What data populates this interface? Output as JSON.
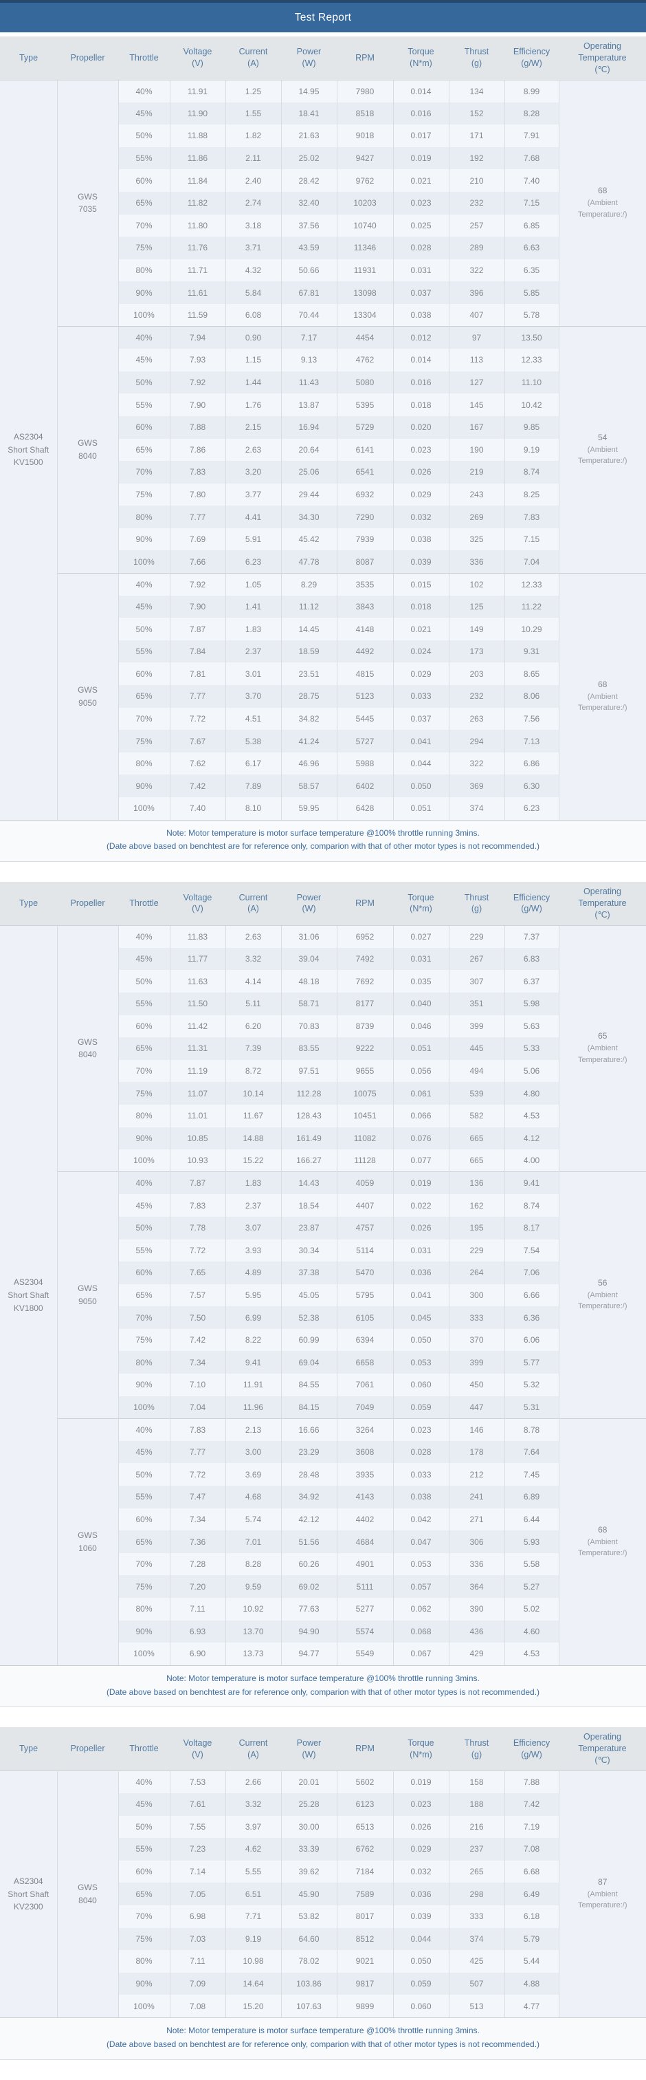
{
  "title": "Test Report",
  "columns": [
    {
      "label": "Type",
      "unit": ""
    },
    {
      "label": "Propeller",
      "unit": ""
    },
    {
      "label": "Throttle",
      "unit": ""
    },
    {
      "label": "Voltage",
      "unit": "(V)"
    },
    {
      "label": "Current",
      "unit": "(A)"
    },
    {
      "label": "Power",
      "unit": "(W)"
    },
    {
      "label": "RPM",
      "unit": ""
    },
    {
      "label": "Torque",
      "unit": "(N*m)"
    },
    {
      "label": "Thrust",
      "unit": "(g)"
    },
    {
      "label": "Efficiency",
      "unit": "(g/W)"
    },
    {
      "label": "Operating Temperature",
      "unit": "(℃)"
    }
  ],
  "ambient_note": "(Ambient Temperature:/)",
  "notes": {
    "line1": "Note: Motor temperature is motor surface temperature @100% throttle running 3mins.",
    "line2": "(Date above based on benchtest are for reference only, comparion with that of other motor types is not recommended.)"
  },
  "colors": {
    "title_bar": "#36689b",
    "title_bar_top_edge": "#27486d",
    "column_header_bg": "#e3e6e8",
    "column_header_text": "#527ba3",
    "row_light": "#f3f6fa",
    "row_dark": "#e8ecf3",
    "merged_cell_bg": "#eef1f7",
    "cell_text": "#84898f",
    "note_text": "#3e6da0"
  },
  "tables": [
    {
      "type_lines": [
        "AS2304",
        "Short Shaft",
        "KV1500"
      ],
      "groups": [
        {
          "propeller": "GWS 7035",
          "temperature": "68",
          "rows": [
            [
              "40%",
              "11.91",
              "1.25",
              "14.95",
              "7980",
              "0.014",
              "134",
              "8.99"
            ],
            [
              "45%",
              "11.90",
              "1.55",
              "18.41",
              "8518",
              "0.016",
              "152",
              "8.28"
            ],
            [
              "50%",
              "11.88",
              "1.82",
              "21.63",
              "9018",
              "0.017",
              "171",
              "7.91"
            ],
            [
              "55%",
              "11.86",
              "2.11",
              "25.02",
              "9427",
              "0.019",
              "192",
              "7.68"
            ],
            [
              "60%",
              "11.84",
              "2.40",
              "28.42",
              "9762",
              "0.021",
              "210",
              "7.40"
            ],
            [
              "65%",
              "11.82",
              "2.74",
              "32.40",
              "10203",
              "0.023",
              "232",
              "7.15"
            ],
            [
              "70%",
              "11.80",
              "3.18",
              "37.56",
              "10740",
              "0.025",
              "257",
              "6.85"
            ],
            [
              "75%",
              "11.76",
              "3.71",
              "43.59",
              "11346",
              "0.028",
              "289",
              "6.63"
            ],
            [
              "80%",
              "11.71",
              "4.32",
              "50.66",
              "11931",
              "0.031",
              "322",
              "6.35"
            ],
            [
              "90%",
              "11.61",
              "5.84",
              "67.81",
              "13098",
              "0.037",
              "396",
              "5.85"
            ],
            [
              "100%",
              "11.59",
              "6.08",
              "70.44",
              "13304",
              "0.038",
              "407",
              "5.78"
            ]
          ]
        },
        {
          "propeller": "GWS 8040",
          "temperature": "54",
          "rows": [
            [
              "40%",
              "7.94",
              "0.90",
              "7.17",
              "4454",
              "0.012",
              "97",
              "13.50"
            ],
            [
              "45%",
              "7.93",
              "1.15",
              "9.13",
              "4762",
              "0.014",
              "113",
              "12.33"
            ],
            [
              "50%",
              "7.92",
              "1.44",
              "11.43",
              "5080",
              "0.016",
              "127",
              "11.10"
            ],
            [
              "55%",
              "7.90",
              "1.76",
              "13.87",
              "5395",
              "0.018",
              "145",
              "10.42"
            ],
            [
              "60%",
              "7.88",
              "2.15",
              "16.94",
              "5729",
              "0.020",
              "167",
              "9.85"
            ],
            [
              "65%",
              "7.86",
              "2.63",
              "20.64",
              "6141",
              "0.023",
              "190",
              "9.19"
            ],
            [
              "70%",
              "7.83",
              "3.20",
              "25.06",
              "6541",
              "0.026",
              "219",
              "8.74"
            ],
            [
              "75%",
              "7.80",
              "3.77",
              "29.44",
              "6932",
              "0.029",
              "243",
              "8.25"
            ],
            [
              "80%",
              "7.77",
              "4.41",
              "34.30",
              "7290",
              "0.032",
              "269",
              "7.83"
            ],
            [
              "90%",
              "7.69",
              "5.91",
              "45.42",
              "7939",
              "0.038",
              "325",
              "7.15"
            ],
            [
              "100%",
              "7.66",
              "6.23",
              "47.78",
              "8087",
              "0.039",
              "336",
              "7.04"
            ]
          ]
        },
        {
          "propeller": "GWS 9050",
          "temperature": "68",
          "rows": [
            [
              "40%",
              "7.92",
              "1.05",
              "8.29",
              "3535",
              "0.015",
              "102",
              "12.33"
            ],
            [
              "45%",
              "7.90",
              "1.41",
              "11.12",
              "3843",
              "0.018",
              "125",
              "11.22"
            ],
            [
              "50%",
              "7.87",
              "1.83",
              "14.45",
              "4148",
              "0.021",
              "149",
              "10.29"
            ],
            [
              "55%",
              "7.84",
              "2.37",
              "18.59",
              "4492",
              "0.024",
              "173",
              "9.31"
            ],
            [
              "60%",
              "7.81",
              "3.01",
              "23.51",
              "4815",
              "0.029",
              "203",
              "8.65"
            ],
            [
              "65%",
              "7.77",
              "3.70",
              "28.75",
              "5123",
              "0.033",
              "232",
              "8.06"
            ],
            [
              "70%",
              "7.72",
              "4.51",
              "34.82",
              "5445",
              "0.037",
              "263",
              "7.56"
            ],
            [
              "75%",
              "7.67",
              "5.38",
              "41.24",
              "5727",
              "0.041",
              "294",
              "7.13"
            ],
            [
              "80%",
              "7.62",
              "6.17",
              "46.96",
              "5988",
              "0.044",
              "322",
              "6.86"
            ],
            [
              "90%",
              "7.42",
              "7.89",
              "58.57",
              "6402",
              "0.050",
              "369",
              "6.30"
            ],
            [
              "100%",
              "7.40",
              "8.10",
              "59.95",
              "6428",
              "0.051",
              "374",
              "6.23"
            ]
          ]
        }
      ]
    },
    {
      "type_lines": [
        "AS2304",
        "Short Shaft",
        "KV1800"
      ],
      "groups": [
        {
          "propeller": "GWS 8040",
          "temperature": "65",
          "rows": [
            [
              "40%",
              "11.83",
              "2.63",
              "31.06",
              "6952",
              "0.027",
              "229",
              "7.37"
            ],
            [
              "45%",
              "11.77",
              "3.32",
              "39.04",
              "7492",
              "0.031",
              "267",
              "6.83"
            ],
            [
              "50%",
              "11.63",
              "4.14",
              "48.18",
              "7692",
              "0.035",
              "307",
              "6.37"
            ],
            [
              "55%",
              "11.50",
              "5.11",
              "58.71",
              "8177",
              "0.040",
              "351",
              "5.98"
            ],
            [
              "60%",
              "11.42",
              "6.20",
              "70.83",
              "8739",
              "0.046",
              "399",
              "5.63"
            ],
            [
              "65%",
              "11.31",
              "7.39",
              "83.55",
              "9222",
              "0.051",
              "445",
              "5.33"
            ],
            [
              "70%",
              "11.19",
              "8.72",
              "97.51",
              "9655",
              "0.056",
              "494",
              "5.06"
            ],
            [
              "75%",
              "11.07",
              "10.14",
              "112.28",
              "10075",
              "0.061",
              "539",
              "4.80"
            ],
            [
              "80%",
              "11.01",
              "11.67",
              "128.43",
              "10451",
              "0.066",
              "582",
              "4.53"
            ],
            [
              "90%",
              "10.85",
              "14.88",
              "161.49",
              "11082",
              "0.076",
              "665",
              "4.12"
            ],
            [
              "100%",
              "10.93",
              "15.22",
              "166.27",
              "11128",
              "0.077",
              "665",
              "4.00"
            ]
          ]
        },
        {
          "propeller": "GWS 9050",
          "temperature": "56",
          "rows": [
            [
              "40%",
              "7.87",
              "1.83",
              "14.43",
              "4059",
              "0.019",
              "136",
              "9.41"
            ],
            [
              "45%",
              "7.83",
              "2.37",
              "18.54",
              "4407",
              "0.022",
              "162",
              "8.74"
            ],
            [
              "50%",
              "7.78",
              "3.07",
              "23.87",
              "4757",
              "0.026",
              "195",
              "8.17"
            ],
            [
              "55%",
              "7.72",
              "3.93",
              "30.34",
              "5114",
              "0.031",
              "229",
              "7.54"
            ],
            [
              "60%",
              "7.65",
              "4.89",
              "37.38",
              "5470",
              "0.036",
              "264",
              "7.06"
            ],
            [
              "65%",
              "7.57",
              "5.95",
              "45.05",
              "5795",
              "0.041",
              "300",
              "6.66"
            ],
            [
              "70%",
              "7.50",
              "6.99",
              "52.38",
              "6105",
              "0.045",
              "333",
              "6.36"
            ],
            [
              "75%",
              "7.42",
              "8.22",
              "60.99",
              "6394",
              "0.050",
              "370",
              "6.06"
            ],
            [
              "80%",
              "7.34",
              "9.41",
              "69.04",
              "6658",
              "0.053",
              "399",
              "5.77"
            ],
            [
              "90%",
              "7.10",
              "11.91",
              "84.55",
              "7061",
              "0.060",
              "450",
              "5.32"
            ],
            [
              "100%",
              "7.04",
              "11.96",
              "84.15",
              "7049",
              "0.059",
              "447",
              "5.31"
            ]
          ]
        },
        {
          "propeller": "GWS 1060",
          "temperature": "68",
          "rows": [
            [
              "40%",
              "7.83",
              "2.13",
              "16.66",
              "3264",
              "0.023",
              "146",
              "8.78"
            ],
            [
              "45%",
              "7.77",
              "3.00",
              "23.29",
              "3608",
              "0.028",
              "178",
              "7.64"
            ],
            [
              "50%",
              "7.72",
              "3.69",
              "28.48",
              "3935",
              "0.033",
              "212",
              "7.45"
            ],
            [
              "55%",
              "7.47",
              "4.68",
              "34.92",
              "4143",
              "0.038",
              "241",
              "6.89"
            ],
            [
              "60%",
              "7.34",
              "5.74",
              "42.12",
              "4402",
              "0.042",
              "271",
              "6.44"
            ],
            [
              "65%",
              "7.36",
              "7.01",
              "51.56",
              "4684",
              "0.047",
              "306",
              "5.93"
            ],
            [
              "70%",
              "7.28",
              "8.28",
              "60.26",
              "4901",
              "0.053",
              "336",
              "5.58"
            ],
            [
              "75%",
              "7.20",
              "9.59",
              "69.02",
              "5111",
              "0.057",
              "364",
              "5.27"
            ],
            [
              "80%",
              "7.11",
              "10.92",
              "77.63",
              "5277",
              "0.062",
              "390",
              "5.02"
            ],
            [
              "90%",
              "6.93",
              "13.70",
              "94.90",
              "5574",
              "0.068",
              "436",
              "4.60"
            ],
            [
              "100%",
              "6.90",
              "13.73",
              "94.77",
              "5549",
              "0.067",
              "429",
              "4.53"
            ]
          ]
        }
      ]
    },
    {
      "type_lines": [
        "AS2304",
        "Short Shaft",
        "KV2300"
      ],
      "groups": [
        {
          "propeller": "GWS 8040",
          "temperature": "87",
          "rows": [
            [
              "40%",
              "7.53",
              "2.66",
              "20.01",
              "5602",
              "0.019",
              "158",
              "7.88"
            ],
            [
              "45%",
              "7.61",
              "3.32",
              "25.28",
              "6123",
              "0.023",
              "188",
              "7.42"
            ],
            [
              "50%",
              "7.55",
              "3.97",
              "30.00",
              "6513",
              "0.026",
              "216",
              "7.19"
            ],
            [
              "55%",
              "7.23",
              "4.62",
              "33.39",
              "6762",
              "0.029",
              "237",
              "7.08"
            ],
            [
              "60%",
              "7.14",
              "5.55",
              "39.62",
              "7184",
              "0.032",
              "265",
              "6.68"
            ],
            [
              "65%",
              "7.05",
              "6.51",
              "45.90",
              "7589",
              "0.036",
              "298",
              "6.49"
            ],
            [
              "70%",
              "6.98",
              "7.71",
              "53.82",
              "8017",
              "0.039",
              "333",
              "6.18"
            ],
            [
              "75%",
              "7.03",
              "9.19",
              "64.60",
              "8512",
              "0.044",
              "374",
              "5.79"
            ],
            [
              "80%",
              "7.11",
              "10.98",
              "78.02",
              "9021",
              "0.050",
              "425",
              "5.44"
            ],
            [
              "90%",
              "7.09",
              "14.64",
              "103.86",
              "9817",
              "0.059",
              "507",
              "4.88"
            ],
            [
              "100%",
              "7.08",
              "15.20",
              "107.63",
              "9899",
              "0.060",
              "513",
              "4.77"
            ]
          ]
        }
      ]
    }
  ]
}
